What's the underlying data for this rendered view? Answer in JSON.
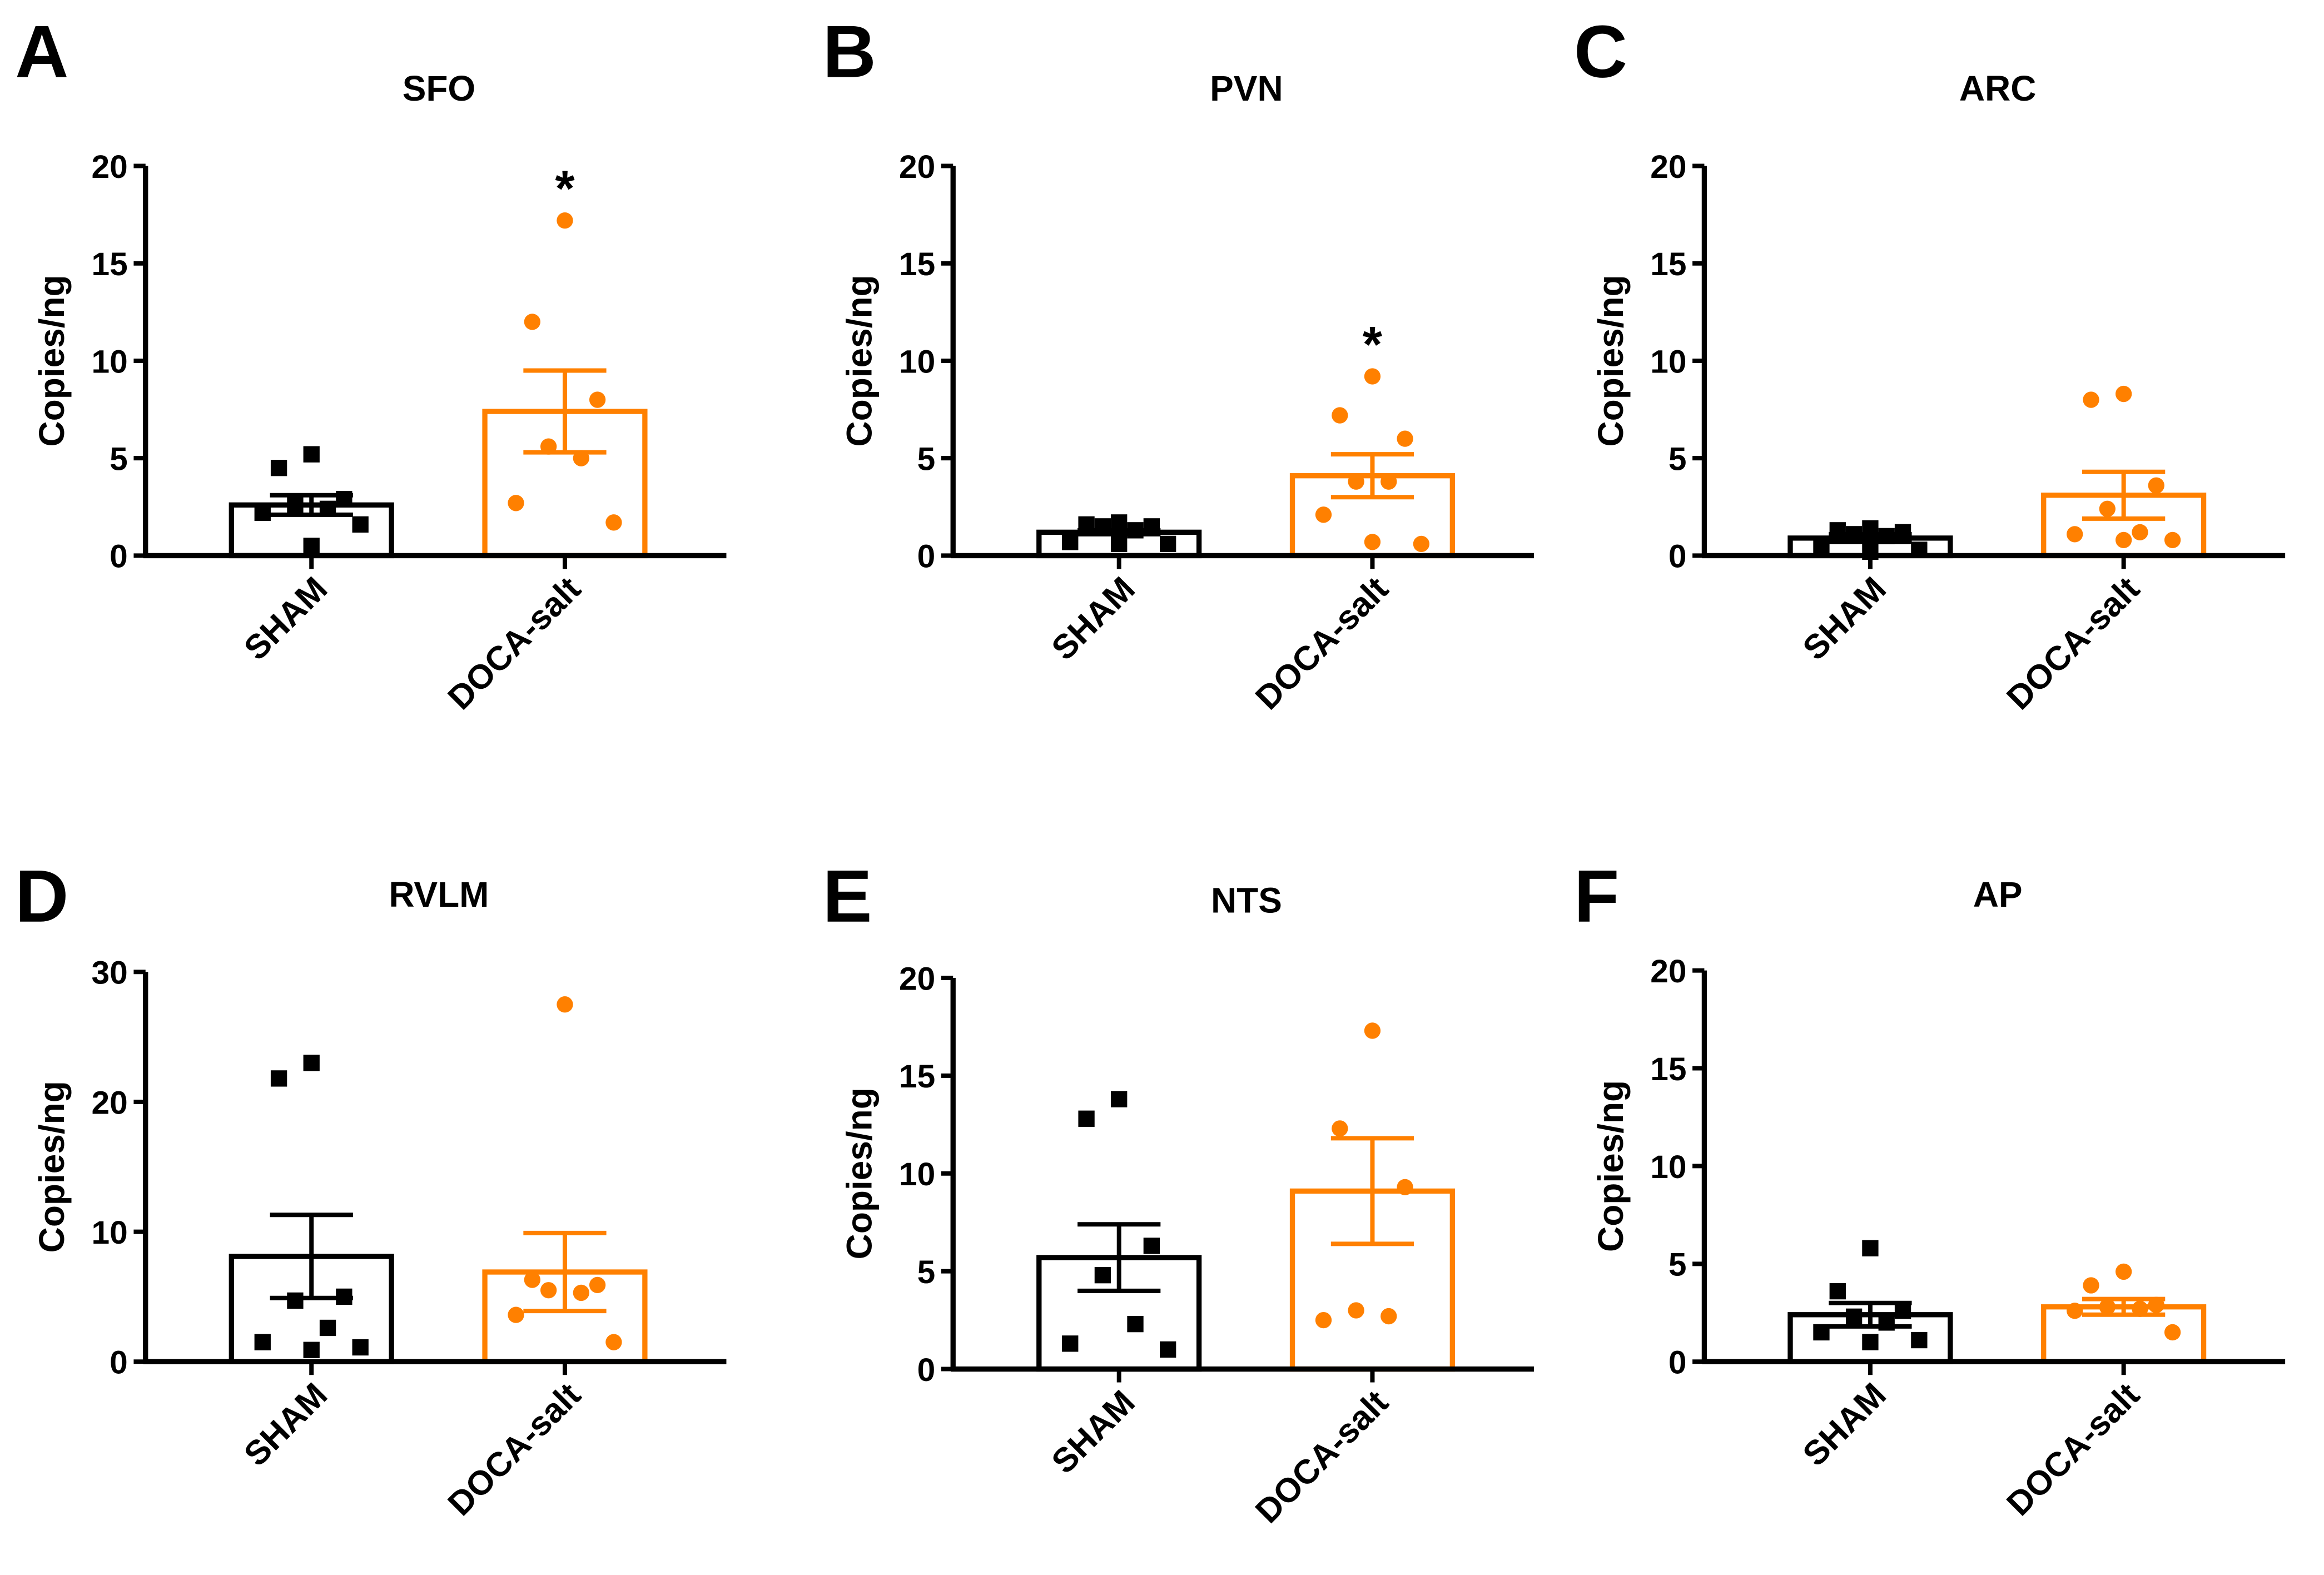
{
  "colors": {
    "sham": "#000000",
    "doca": "#FF8000"
  },
  "chart_data": [
    {
      "type": "bar",
      "panel": "A",
      "title": "SFO",
      "ylabel": "Copies/ng",
      "ylim": [
        0,
        20
      ],
      "yticks": [
        "0",
        "5",
        "10",
        "15",
        "20"
      ],
      "categories": [
        "SHAM",
        "DOCA-salt"
      ],
      "series": [
        {
          "name": "SHAM",
          "mean": 2.6,
          "sem": 0.5,
          "points": [
            5.2,
            4.5,
            2.9,
            2.6,
            2.4,
            2.2,
            1.6,
            0.5
          ]
        },
        {
          "name": "DOCA-salt",
          "mean": 7.4,
          "sem": 2.1,
          "points": [
            17.2,
            12.0,
            8.0,
            5.6,
            5.0,
            2.7,
            1.7
          ]
        }
      ],
      "annotations": [
        {
          "category": "DOCA-salt",
          "text": "*"
        }
      ]
    },
    {
      "type": "bar",
      "panel": "B",
      "title": "PVN",
      "ylabel": "Copies/ng",
      "ylim": [
        0,
        20
      ],
      "yticks": [
        "0",
        "5",
        "10",
        "15",
        "20"
      ],
      "categories": [
        "SHAM",
        "DOCA-salt"
      ],
      "series": [
        {
          "name": "SHAM",
          "mean": 1.2,
          "sem": 0.1,
          "points": [
            1.7,
            1.6,
            1.5,
            1.5,
            1.3,
            0.7,
            0.6,
            0.6
          ]
        },
        {
          "name": "DOCA-salt",
          "mean": 4.1,
          "sem": 1.1,
          "points": [
            9.2,
            7.2,
            6.0,
            3.8,
            3.8,
            2.1,
            0.6,
            0.7
          ]
        }
      ],
      "annotations": [
        {
          "category": "DOCA-salt",
          "text": "*"
        }
      ]
    },
    {
      "type": "bar",
      "panel": "C",
      "title": "ARC",
      "ylabel": "Copies/ng",
      "ylim": [
        0,
        20
      ],
      "yticks": [
        "0",
        "5",
        "10",
        "15",
        "20"
      ],
      "categories": [
        "SHAM",
        "DOCA-salt"
      ],
      "series": [
        {
          "name": "SHAM",
          "mean": 0.9,
          "sem": 0.2,
          "points": [
            1.4,
            1.3,
            1.2,
            1.1,
            1.0,
            0.5,
            0.3,
            0.2
          ]
        },
        {
          "name": "DOCA-salt",
          "mean": 3.1,
          "sem": 1.2,
          "points": [
            8.3,
            8.0,
            3.6,
            2.4,
            1.2,
            1.1,
            0.8,
            0.8
          ]
        }
      ],
      "annotations": []
    },
    {
      "type": "bar",
      "panel": "D",
      "title": "RVLM",
      "ylabel": "Copies/ng",
      "ylim": [
        0,
        30
      ],
      "yticks": [
        "0",
        "10",
        "20",
        "30"
      ],
      "categories": [
        "SHAM",
        "DOCA-salt"
      ],
      "series": [
        {
          "name": "SHAM",
          "mean": 8.1,
          "sem": 3.2,
          "points": [
            23.0,
            21.8,
            5.0,
            4.7,
            2.6,
            1.5,
            1.1,
            0.9
          ]
        },
        {
          "name": "DOCA-salt",
          "mean": 6.9,
          "sem": 3.0,
          "points": [
            27.5,
            6.3,
            5.9,
            5.5,
            5.3,
            3.6,
            1.5
          ]
        }
      ],
      "annotations": []
    },
    {
      "type": "bar",
      "panel": "E",
      "title": "NTS",
      "ylabel": "Copies/ng",
      "ylim": [
        0,
        20
      ],
      "yticks": [
        "0",
        "5",
        "10",
        "15",
        "20"
      ],
      "categories": [
        "SHAM",
        "DOCA-salt"
      ],
      "series": [
        {
          "name": "SHAM",
          "mean": 5.7,
          "sem": 1.7,
          "points": [
            13.8,
            12.8,
            6.3,
            4.8,
            2.3,
            1.3,
            1.0
          ]
        },
        {
          "name": "DOCA-salt",
          "mean": 9.1,
          "sem": 2.7,
          "points": [
            17.3,
            12.3,
            9.3,
            3.0,
            2.7,
            2.5
          ]
        }
      ],
      "annotations": []
    },
    {
      "type": "bar",
      "panel": "F",
      "title": "AP",
      "ylabel": "Copies/ng",
      "ylim": [
        0,
        20
      ],
      "yticks": [
        "0",
        "5",
        "10",
        "15",
        "20"
      ],
      "categories": [
        "SHAM",
        "DOCA-salt"
      ],
      "series": [
        {
          "name": "SHAM",
          "mean": 2.4,
          "sem": 0.6,
          "points": [
            5.8,
            3.6,
            2.6,
            2.3,
            2.0,
            1.5,
            1.1,
            1.0
          ]
        },
        {
          "name": "DOCA-salt",
          "mean": 2.8,
          "sem": 0.4,
          "points": [
            4.6,
            3.9,
            2.9,
            2.8,
            2.7,
            2.6,
            1.5
          ]
        }
      ],
      "annotations": []
    }
  ]
}
